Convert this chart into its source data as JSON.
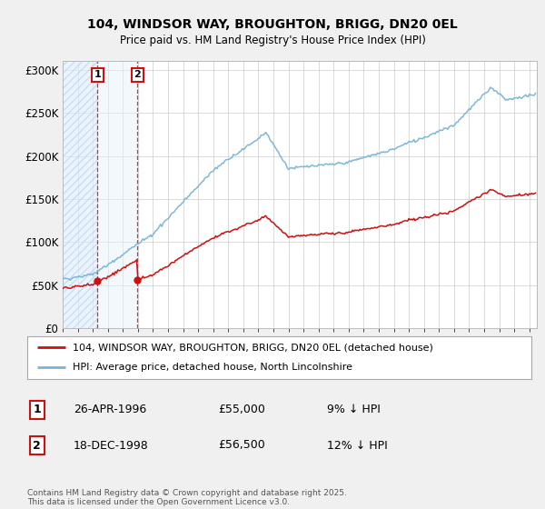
{
  "title1": "104, WINDSOR WAY, BROUGHTON, BRIGG, DN20 0EL",
  "title2": "Price paid vs. HM Land Registry's House Price Index (HPI)",
  "ylim": [
    0,
    310000
  ],
  "yticks": [
    0,
    50000,
    100000,
    150000,
    200000,
    250000,
    300000
  ],
  "ytick_labels": [
    "£0",
    "£50K",
    "£100K",
    "£150K",
    "£200K",
    "£250K",
    "£300K"
  ],
  "sale1_year": 1996.32,
  "sale1_price": 55000,
  "sale2_year": 1998.96,
  "sale2_price": 56500,
  "hpi_color": "#7ab3d4",
  "price_color": "#cc1111",
  "legend_line1": "104, WINDSOR WAY, BROUGHTON, BRIGG, DN20 0EL (detached house)",
  "legend_line2": "HPI: Average price, detached house, North Lincolnshire",
  "table_row1": [
    "1",
    "26-APR-1996",
    "£55,000",
    "9% ↓ HPI"
  ],
  "table_row2": [
    "2",
    "18-DEC-1998",
    "£56,500",
    "12% ↓ HPI"
  ],
  "footer": "Contains HM Land Registry data © Crown copyright and database right 2025.\nThis data is licensed under the Open Government Licence v3.0.",
  "bg_color": "#f0f0f0",
  "plot_bg": "#ffffff",
  "hatch_color": "#dce8f5",
  "sale_region_color": "#e8f0f8"
}
